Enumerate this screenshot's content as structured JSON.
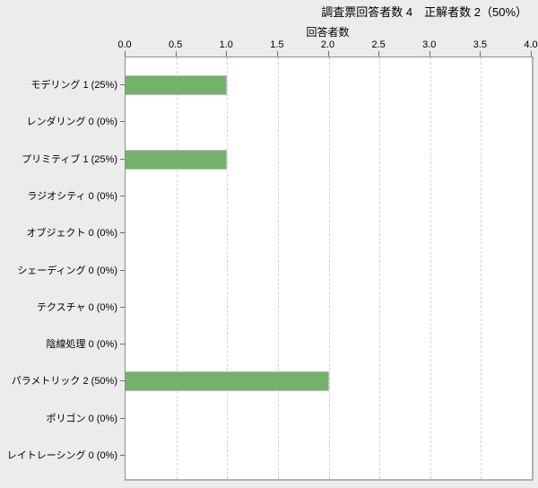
{
  "chart_data": {
    "type": "bar",
    "orientation": "horizontal",
    "title": "調査票回答者数 4　正解者数 2（50%）",
    "xlabel": "回答者数",
    "xlim": [
      0,
      4
    ],
    "xtick_labels": [
      "0.0",
      "0.5",
      "1.0",
      "1.5",
      "2.0",
      "2.5",
      "3.0",
      "3.5",
      "4.0"
    ],
    "grid": "vertical dashed gridlines at each 0.5, axis on top",
    "legend": "none",
    "categories": [
      "モデリング 1 (25%)",
      "レンダリング 0 (0%)",
      "プリミティブ 1 (25%)",
      "ラジオシティ 0 (0%)",
      "オブジェクト 0 (0%)",
      "シェーディング 0 (0%)",
      "テクスチャ 0 (0%)",
      "陰線処理 0 (0%)",
      "パラメトリック 2 (50%)",
      "ポリゴン 0 (0%)",
      "レイトレーシング 0 (0%)"
    ],
    "values": [
      1,
      0,
      1,
      0,
      0,
      0,
      0,
      0,
      2,
      0,
      0
    ],
    "colors": {
      "background": "#ececec",
      "plot_background": "#ffffff",
      "bar_fill": "#74b26b",
      "bar_border": "#b9b9b9",
      "gridline": "#d2d2d2",
      "text": "#000000"
    }
  }
}
